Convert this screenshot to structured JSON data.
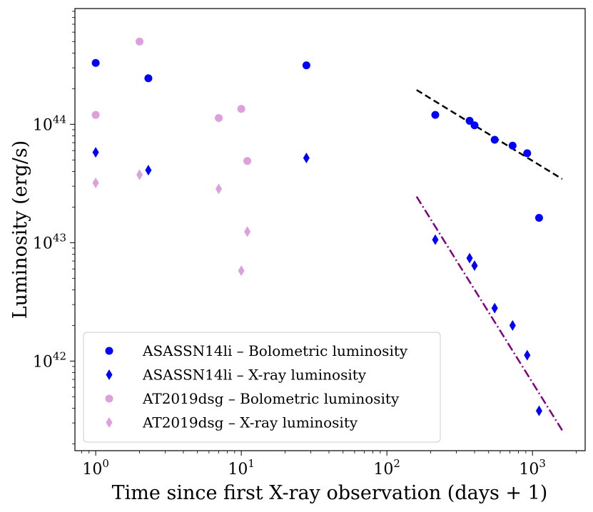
{
  "chart_data": {
    "type": "scatter",
    "xscale": "log",
    "yscale": "log",
    "xlabel": "Time since first X-ray observation (days + 1)",
    "ylabel": "Luminosity (erg/s)",
    "xlim": [
      0.72,
      2300
    ],
    "ylim": [
      1.75e+41,
      9.5e+44
    ],
    "x_ticks": [
      {
        "value": 1,
        "base": "10",
        "exp": "0"
      },
      {
        "value": 10,
        "base": "10",
        "exp": "1"
      },
      {
        "value": 100,
        "base": "10",
        "exp": "2"
      },
      {
        "value": 1000,
        "base": "10",
        "exp": "3"
      }
    ],
    "y_ticks": [
      {
        "value": 1e+42,
        "base": "10",
        "exp": "42"
      },
      {
        "value": 1e+43,
        "base": "10",
        "exp": "43"
      },
      {
        "value": 1e+44,
        "base": "10",
        "exp": "44"
      }
    ],
    "legend_position": "lower-left",
    "series": [
      {
        "name": "ASASSN14li – Bolometric luminosity",
        "marker": "circle",
        "color": "#0000ff",
        "points": [
          {
            "x": 1,
            "y": 3.3e+44
          },
          {
            "x": 2.3,
            "y": 2.45e+44
          },
          {
            "x": 28,
            "y": 3.15e+44
          },
          {
            "x": 215,
            "y": 1.2e+44
          },
          {
            "x": 370,
            "y": 1.07e+44
          },
          {
            "x": 400,
            "y": 9.8e+43
          },
          {
            "x": 550,
            "y": 7.4e+43
          },
          {
            "x": 730,
            "y": 6.6e+43
          },
          {
            "x": 920,
            "y": 5.7e+43
          },
          {
            "x": 1110,
            "y": 1.62e+43
          }
        ]
      },
      {
        "name": "ASASSN14li – X-ray luminosity",
        "marker": "thin_diamond",
        "color": "#0000ff",
        "points": [
          {
            "x": 1,
            "y": 5.8e+43
          },
          {
            "x": 2.3,
            "y": 4.1e+43
          },
          {
            "x": 28,
            "y": 5.2e+43
          },
          {
            "x": 215,
            "y": 1.06e+43
          },
          {
            "x": 370,
            "y": 7.4e+42
          },
          {
            "x": 400,
            "y": 6.4e+42
          },
          {
            "x": 550,
            "y": 2.8e+42
          },
          {
            "x": 730,
            "y": 2e+42
          },
          {
            "x": 920,
            "y": 1.12e+42
          },
          {
            "x": 1110,
            "y": 3.8e+41
          }
        ]
      },
      {
        "name": "AT2019dsg – Bolometric luminosity",
        "marker": "circle",
        "color": "#dda0dd",
        "points": [
          {
            "x": 1,
            "y": 1.2e+44
          },
          {
            "x": 2,
            "y": 5e+44
          },
          {
            "x": 7,
            "y": 1.13e+44
          },
          {
            "x": 10,
            "y": 1.35e+44
          },
          {
            "x": 11,
            "y": 4.9e+43
          }
        ]
      },
      {
        "name": "AT2019dsg – X-ray luminosity",
        "marker": "thin_diamond",
        "color": "#dda0dd",
        "points": [
          {
            "x": 1,
            "y": 3.2e+43
          },
          {
            "x": 2,
            "y": 3.75e+43
          },
          {
            "x": 7,
            "y": 2.85e+43
          },
          {
            "x": 10,
            "y": 5.8e+42
          },
          {
            "x": 11,
            "y": 1.24e+43
          }
        ]
      }
    ],
    "fit_lines": [
      {
        "name": "bolometric power-law fit",
        "style": "dashed",
        "color": "#000000",
        "x_start": 160,
        "x_end": 1600,
        "y_start": 1.95e+44,
        "y_end": 3.45e+43
      },
      {
        "name": "X-ray power-law fit",
        "style": "dashdot",
        "color": "#800080",
        "x_start": 160,
        "x_end": 1600,
        "y_start": 2.45e+43,
        "y_end": 2.6e+41
      }
    ]
  }
}
